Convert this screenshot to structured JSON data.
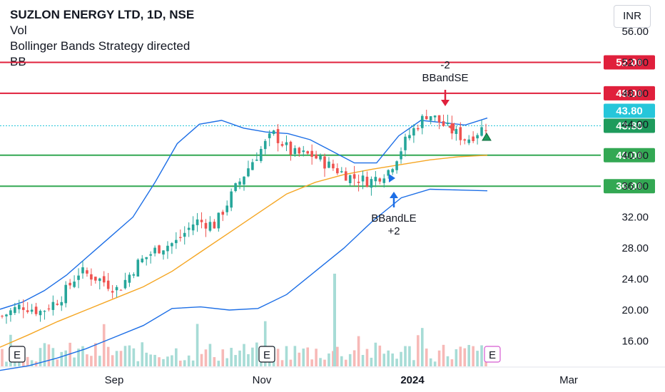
{
  "header": {
    "symbol_line": "SUZLON ENERGY LTD, 1D, NSE",
    "indicators": [
      "Vol",
      "Bollinger Bands Strategy directed",
      "BB"
    ],
    "currency": "INR"
  },
  "colors": {
    "up": "#26a69a",
    "down": "#ef5350",
    "resistance": "#e0203c",
    "support": "#33a853",
    "bb": "#1c6ee6",
    "basis": "#f5a623",
    "last": "#26c6da"
  },
  "events": [
    {
      "label": "E",
      "marker": "earnings"
    },
    {
      "label": "E",
      "marker": "earnings"
    },
    {
      "label": "E",
      "marker": "earnings"
    }
  ],
  "chart_data": {
    "type": "candlestick",
    "title": "SUZLON ENERGY LTD, 1D, NSE",
    "y_ticks": [
      "56.00",
      "52.00",
      "48.00",
      "44.00",
      "40.00",
      "36.00",
      "32.00",
      "28.00",
      "24.00",
      "20.00",
      "16.00"
    ],
    "ylim": [
      12,
      58
    ],
    "x_ticks": [
      "Sep",
      "Nov",
      "2024",
      "Mar"
    ],
    "scale": "linear",
    "horizontal_levels": [
      {
        "value": 52.0,
        "label": "52.00",
        "role": "resistance"
      },
      {
        "value": 48.0,
        "label": "48.00",
        "role": "resistance"
      },
      {
        "value": 40.0,
        "label": "40.00",
        "role": "support"
      },
      {
        "value": 36.0,
        "label": "36.00",
        "role": "support"
      }
    ],
    "last_price": {
      "value": 43.8,
      "labels": [
        "43.80",
        "43.80"
      ]
    },
    "signals": [
      {
        "name": "BBandSE",
        "qty": "-2",
        "direction": "sell",
        "price": 46.0
      },
      {
        "name": "BBandLE",
        "qty": "+2",
        "direction": "buy",
        "price": 34.6
      }
    ],
    "series": [
      {
        "name": "Bollinger upper",
        "values_sampled": [
          20.1,
          21.0,
          22.5,
          24.5,
          27.0,
          29.5,
          32.0,
          36.5,
          41.5,
          44.0,
          44.5,
          43.5,
          43.0,
          42.8,
          42.0,
          40.5,
          39.0,
          39.0,
          42.5,
          44.5,
          44.2,
          43.9,
          44.8
        ]
      },
      {
        "name": "Bollinger basis",
        "values_sampled": [
          15.2,
          16.8,
          18.5,
          20.0,
          21.5,
          23.0,
          25.0,
          27.5,
          30.0,
          32.5,
          35.0,
          36.5,
          37.5,
          38.2,
          38.8,
          39.4,
          39.8,
          40.0
        ]
      },
      {
        "name": "Bollinger lower",
        "values_sampled": [
          12.2,
          12.8,
          13.8,
          15.0,
          16.5,
          18.0,
          20.2,
          20.4,
          20.0,
          20.2,
          22.0,
          25.0,
          28.0,
          31.5,
          34.5,
          35.6,
          35.5,
          35.4
        ]
      },
      {
        "name": "Close",
        "values_sampled": [
          19.2,
          20.6,
          19.8,
          21.5,
          25.0,
          24.0,
          22.6,
          26.0,
          27.9,
          28.8,
          31.5,
          31.0,
          35.5,
          39.5,
          42.8,
          40.2,
          40.0,
          38.5,
          37.2,
          36.6,
          38.1,
          42.5,
          45.5,
          43.5,
          42.0,
          43.8
        ]
      }
    ],
    "volume": {
      "has_data": true,
      "bars_relative": true
    }
  }
}
